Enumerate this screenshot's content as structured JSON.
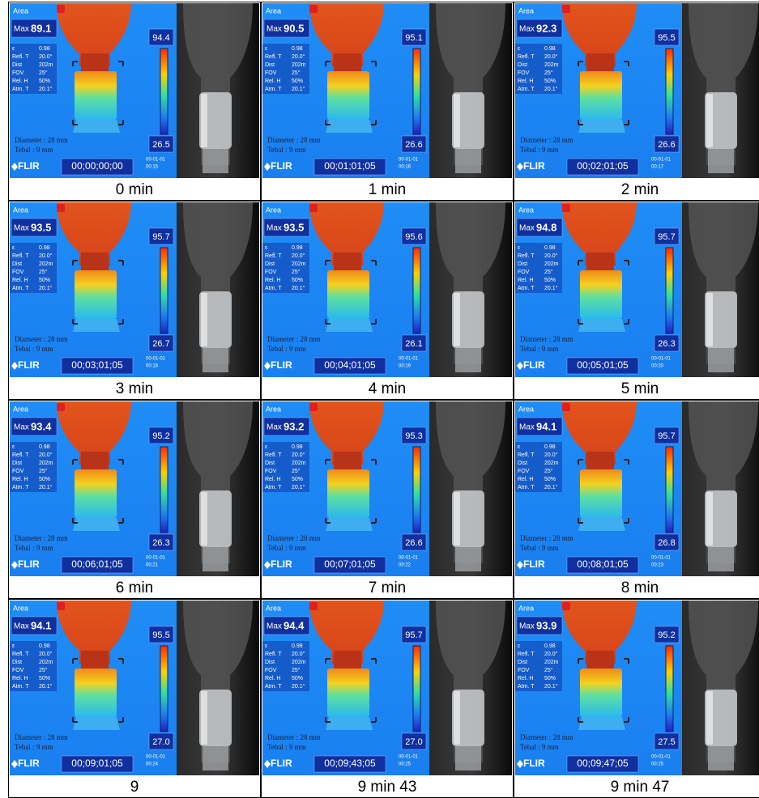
{
  "labels": {
    "area": "Area",
    "max": "Max",
    "params": [
      [
        "ε",
        "0.98"
      ],
      [
        "Refl. T",
        "20.0°"
      ],
      [
        "Dist",
        "202m"
      ],
      [
        "FOV",
        "25°"
      ],
      [
        "Rel. H",
        "50%"
      ],
      [
        "Atm. T",
        "20.1°"
      ]
    ],
    "diameter": "Diameter : 28 mm",
    "tebal": "Tebal    : 9 mm",
    "flir": "FLIR",
    "date": "00-01-01"
  },
  "panels": [
    {
      "max": "89.1",
      "scale_max": "94.4",
      "scale_min": "26.5",
      "timestamp": "00;00;00;00",
      "time": "00:15",
      "caption": "0 min"
    },
    {
      "max": "90.5",
      "scale_max": "95.1",
      "scale_min": "26.6",
      "timestamp": "00;01;01;05",
      "time": "00:16",
      "caption": "1 min"
    },
    {
      "max": "92.3",
      "scale_max": "95.5",
      "scale_min": "26.6",
      "timestamp": "00;02;01;05",
      "time": "00:17",
      "caption": "2 min"
    },
    {
      "max": "93.5",
      "scale_max": "95.7",
      "scale_min": "26.7",
      "timestamp": "00;03;01;05",
      "time": "00:18",
      "caption": "3 min"
    },
    {
      "max": "93.5",
      "scale_max": "95.6",
      "scale_min": "26.1",
      "timestamp": "00;04;01;05",
      "time": "00:19",
      "caption": "4 min"
    },
    {
      "max": "94.8",
      "scale_max": "95.7",
      "scale_min": "26.3",
      "timestamp": "00;05;01;05",
      "time": "00:20",
      "caption": "5 min"
    },
    {
      "max": "93.4",
      "scale_max": "95.2",
      "scale_min": "26.3",
      "timestamp": "00;06;01;05",
      "time": "00:21",
      "caption": "6 min"
    },
    {
      "max": "93.2",
      "scale_max": "95.3",
      "scale_min": "26.6",
      "timestamp": "00;07;01;05",
      "time": "00:22",
      "caption": "7 min"
    },
    {
      "max": "94.1",
      "scale_max": "95.7",
      "scale_min": "26.8",
      "timestamp": "00;08;01;05",
      "time": "00:23",
      "caption": "8 min"
    },
    {
      "max": "94.1",
      "scale_max": "95.5",
      "scale_min": "27.0",
      "timestamp": "00;09;01;05",
      "time": "00:24",
      "caption": "9"
    },
    {
      "max": "94.4",
      "scale_max": "95.7",
      "scale_min": "27.0",
      "timestamp": "00;09;43;05",
      "time": "00:25",
      "caption": "9 min 43"
    },
    {
      "max": "93.9",
      "scale_max": "95.2",
      "scale_min": "27.5",
      "timestamp": "00;09;47;05",
      "time": "00:25",
      "caption": "9 min 47"
    }
  ]
}
